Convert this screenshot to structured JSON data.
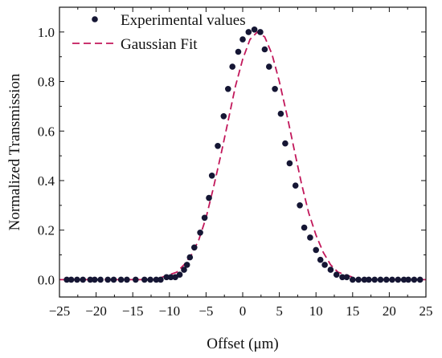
{
  "chart_data": {
    "type": "scatter",
    "xlabel": "Offset (μm)",
    "ylabel": "Normalized Transmission",
    "xlim": [
      -25,
      25
    ],
    "ylim": [
      -0.07,
      1.1
    ],
    "x_ticks": [
      -25,
      -20,
      -15,
      -10,
      -5,
      0,
      5,
      10,
      15,
      20,
      25
    ],
    "x_tick_labels": [
      "−25",
      "−20",
      "−15",
      "−10",
      "−5",
      "0",
      "5",
      "10",
      "15",
      "20",
      "25"
    ],
    "y_ticks": [
      0.0,
      0.2,
      0.4,
      0.6,
      0.8,
      1.0
    ],
    "y_tick_labels": [
      "0.0",
      "0.2",
      "0.4",
      "0.6",
      "0.8",
      "1.0"
    ],
    "grid": false,
    "legend_position": "top-left",
    "series": [
      {
        "name": "Experimental values",
        "kind": "scatter",
        "color": "#151634",
        "x": [
          -24,
          -23.4,
          -22.6,
          -21.8,
          -20.8,
          -20.2,
          -19.4,
          -18.4,
          -17.6,
          -16.6,
          -15.8,
          -14.6,
          -13.4,
          -12.6,
          -11.8,
          -11.2,
          -10.4,
          -9.8,
          -9.2,
          -8.6,
          -8.0,
          -7.6,
          -7.2,
          -6.6,
          -5.8,
          -5.2,
          -4.6,
          -4.2,
          -3.4,
          -2.6,
          -2.0,
          -1.4,
          -0.6,
          0.0,
          0.8,
          1.6,
          2.4,
          3.0,
          3.6,
          4.4,
          5.2,
          5.8,
          6.4,
          7.2,
          7.8,
          8.4,
          9.2,
          10.0,
          10.6,
          11.2,
          12.0,
          12.8,
          13.6,
          14.2,
          15.0,
          15.8,
          16.6,
          17.2,
          18.0,
          18.8,
          19.6,
          20.4,
          21.2,
          22.0,
          22.6,
          23.4,
          24.2
        ],
        "y": [
          0.0,
          0.0,
          0.0,
          0.0,
          0.0,
          0.0,
          0.0,
          0.0,
          0.0,
          0.0,
          0.0,
          0.0,
          0.0,
          0.0,
          0.0,
          0.0,
          0.01,
          0.01,
          0.01,
          0.02,
          0.04,
          0.06,
          0.09,
          0.13,
          0.19,
          0.25,
          0.33,
          0.42,
          0.54,
          0.66,
          0.77,
          0.86,
          0.92,
          0.97,
          1.0,
          1.01,
          1.0,
          0.93,
          0.86,
          0.77,
          0.67,
          0.55,
          0.47,
          0.38,
          0.3,
          0.21,
          0.17,
          0.12,
          0.08,
          0.06,
          0.04,
          0.02,
          0.01,
          0.01,
          0.0,
          0.0,
          0.0,
          0.0,
          0.0,
          0.0,
          0.0,
          0.0,
          0.0,
          0.0,
          0.0,
          0.0,
          0.0
        ]
      },
      {
        "name": "Gaussian Fit",
        "kind": "line",
        "style": "dashed",
        "color": "#c2185b",
        "x": [
          -25,
          -23,
          -21,
          -19,
          -17,
          -15,
          -13,
          -12,
          -11,
          -10,
          -9,
          -8,
          -7,
          -6,
          -5,
          -4,
          -3,
          -2,
          -1,
          0,
          1,
          2,
          3,
          4,
          5,
          6,
          7,
          8,
          9,
          10,
          11,
          12,
          13,
          14,
          15,
          16,
          17,
          19,
          21,
          23,
          25
        ],
        "y": [
          0.0,
          0.0,
          0.0,
          0.0,
          0.0,
          0.0,
          0.0,
          0.0,
          0.01,
          0.02,
          0.03,
          0.06,
          0.1,
          0.16,
          0.25,
          0.37,
          0.5,
          0.64,
          0.78,
          0.89,
          0.97,
          1.0,
          0.98,
          0.91,
          0.8,
          0.67,
          0.53,
          0.39,
          0.27,
          0.18,
          0.11,
          0.06,
          0.03,
          0.02,
          0.01,
          0.0,
          0.0,
          0.0,
          0.0,
          0.0,
          0.0
        ]
      }
    ]
  }
}
